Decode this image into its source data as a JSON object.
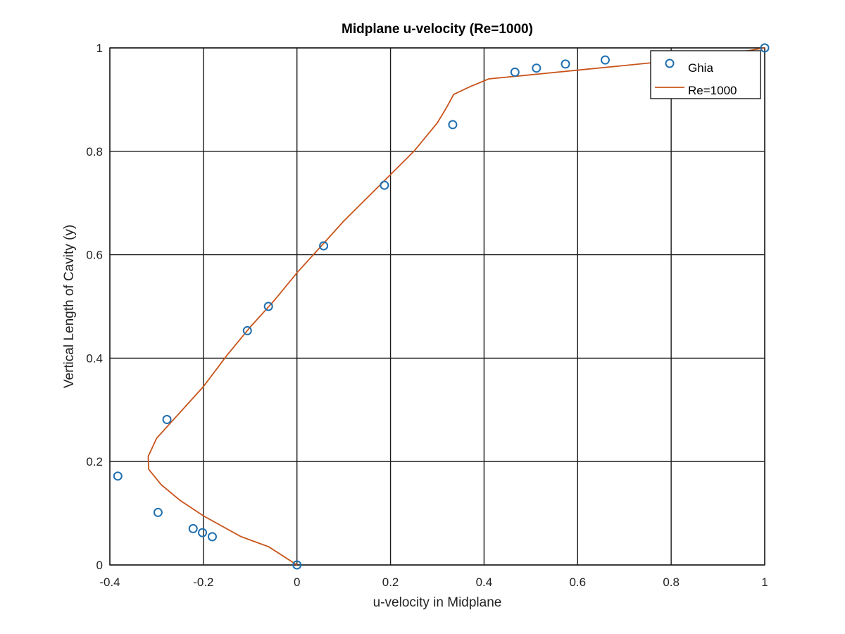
{
  "chart_data": {
    "type": "line",
    "title": "Midplane u-velocity (Re=1000)",
    "xlabel": "u-velocity in Midplane",
    "ylabel": "Vertical Length of Cavity (y)",
    "xlim": [
      -0.4,
      1
    ],
    "ylim": [
      0,
      1
    ],
    "xticks": [
      -0.4,
      -0.2,
      0,
      0.2,
      0.4,
      0.6,
      0.8,
      1
    ],
    "yticks": [
      0,
      0.2,
      0.4,
      0.6,
      0.8,
      1
    ],
    "xtick_labels": [
      "-0.4",
      "-0.2",
      "0",
      "0.2",
      "0.4",
      "0.6",
      "0.8",
      "1"
    ],
    "ytick_labels": [
      "0",
      "0.2",
      "0.4",
      "0.6",
      "0.8",
      "1"
    ],
    "grid": true,
    "legend_position": "top-right",
    "series": [
      {
        "name": "Ghia",
        "type": "scatter",
        "marker": "circle",
        "color": "#1f6fb0",
        "points": [
          {
            "x": 0.0,
            "y": 0.0
          },
          {
            "x": -0.181,
            "y": 0.0547
          },
          {
            "x": -0.202,
            "y": 0.0625
          },
          {
            "x": -0.222,
            "y": 0.0703
          },
          {
            "x": -0.297,
            "y": 0.1016
          },
          {
            "x": -0.383,
            "y": 0.1719
          },
          {
            "x": -0.278,
            "y": 0.2813
          },
          {
            "x": -0.106,
            "y": 0.4531
          },
          {
            "x": -0.061,
            "y": 0.5
          },
          {
            "x": 0.057,
            "y": 0.6172
          },
          {
            "x": 0.187,
            "y": 0.7344
          },
          {
            "x": 0.333,
            "y": 0.8516
          },
          {
            "x": 0.466,
            "y": 0.9531
          },
          {
            "x": 0.512,
            "y": 0.9609
          },
          {
            "x": 0.574,
            "y": 0.9688
          },
          {
            "x": 0.659,
            "y": 0.9766
          },
          {
            "x": 1.0,
            "y": 1.0
          }
        ]
      },
      {
        "name": "Re=1000",
        "type": "line",
        "color": "#c8541b",
        "points": [
          {
            "x": 0.0,
            "y": 0.0
          },
          {
            "x": -0.06,
            "y": 0.035
          },
          {
            "x": -0.12,
            "y": 0.055
          },
          {
            "x": -0.2,
            "y": 0.095
          },
          {
            "x": -0.25,
            "y": 0.125
          },
          {
            "x": -0.29,
            "y": 0.155
          },
          {
            "x": -0.317,
            "y": 0.185
          },
          {
            "x": -0.318,
            "y": 0.21
          },
          {
            "x": -0.3,
            "y": 0.245
          },
          {
            "x": -0.25,
            "y": 0.295
          },
          {
            "x": -0.2,
            "y": 0.345
          },
          {
            "x": -0.15,
            "y": 0.405
          },
          {
            "x": -0.1,
            "y": 0.46
          },
          {
            "x": -0.05,
            "y": 0.51
          },
          {
            "x": 0.0,
            "y": 0.565
          },
          {
            "x": 0.05,
            "y": 0.615
          },
          {
            "x": 0.1,
            "y": 0.665
          },
          {
            "x": 0.15,
            "y": 0.71
          },
          {
            "x": 0.2,
            "y": 0.755
          },
          {
            "x": 0.25,
            "y": 0.8
          },
          {
            "x": 0.3,
            "y": 0.855
          },
          {
            "x": 0.32,
            "y": 0.885
          },
          {
            "x": 0.335,
            "y": 0.91
          },
          {
            "x": 0.37,
            "y": 0.925
          },
          {
            "x": 0.41,
            "y": 0.94
          },
          {
            "x": 0.5,
            "y": 0.948
          },
          {
            "x": 0.6,
            "y": 0.957
          },
          {
            "x": 0.7,
            "y": 0.966
          },
          {
            "x": 0.8,
            "y": 0.975
          },
          {
            "x": 0.9,
            "y": 0.985
          },
          {
            "x": 1.0,
            "y": 1.0
          }
        ]
      }
    ]
  }
}
